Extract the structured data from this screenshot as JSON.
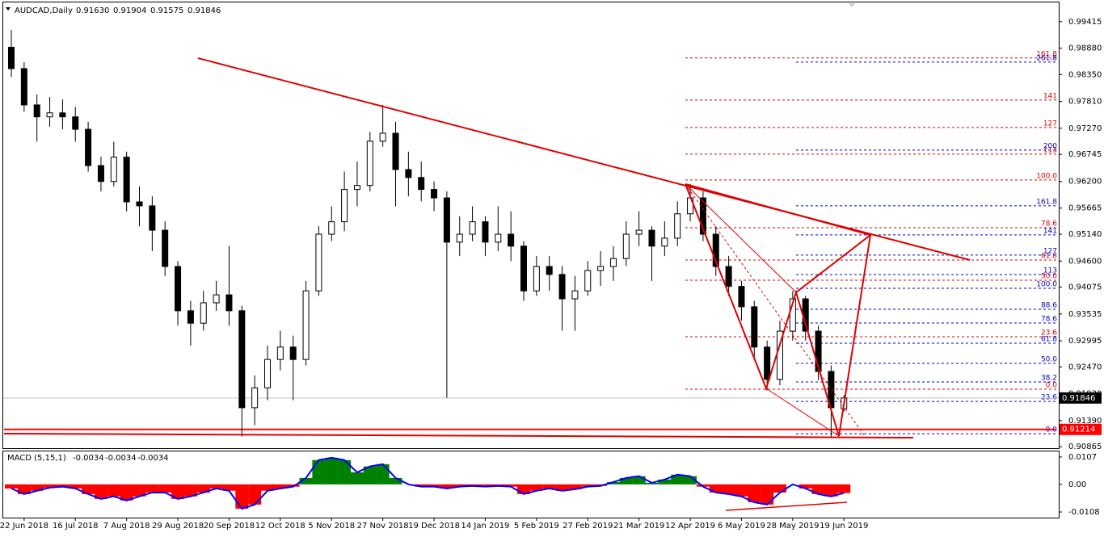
{
  "chart_data": [
    {
      "type": "candlestick",
      "title": "AUDCAD,Daily",
      "ohlc_header": {
        "values": [
          0.9163,
          0.91904,
          0.91575,
          0.91846
        ],
        "value_labels": [
          "0.91630",
          "0.91904",
          "0.91575",
          "0.91846"
        ]
      },
      "x": [
        null,
        "22 Jun 2018",
        null,
        null,
        null,
        "16 Jul 2018",
        null,
        null,
        null,
        "7 Aug 2018",
        null,
        null,
        null,
        "29 Aug 2018",
        null,
        null,
        null,
        "20 Sep 2018",
        null,
        null,
        null,
        "12 Oct 2018",
        null,
        null,
        null,
        "5 Nov 2018",
        null,
        null,
        null,
        "27 Nov 2018",
        null,
        null,
        null,
        "19 Dec 2018",
        null,
        null,
        null,
        "14 Jan 2019",
        null,
        null,
        null,
        "5 Feb 2019",
        null,
        null,
        null,
        "27 Feb 2019",
        null,
        null,
        null,
        "21 Mar 2019",
        null,
        null,
        null,
        "12 Apr 2019",
        null,
        null,
        null,
        "6 May 2019",
        null,
        null,
        null,
        "28 May 2019",
        null,
        null,
        null,
        "19 Jun 2019"
      ],
      "open": [
        0.989,
        0.9847,
        0.9774,
        0.975,
        0.9758,
        0.975,
        0.9725,
        0.9652,
        0.962,
        0.9669,
        0.9579,
        0.9571,
        0.9522,
        0.9449,
        0.936,
        0.9335,
        0.9376,
        0.9392,
        0.936,
        0.9165,
        0.9205,
        0.9262,
        0.9287,
        0.9262,
        0.94,
        0.9514,
        0.9539,
        0.9604,
        0.9612,
        0.9701,
        0.9717,
        0.9644,
        0.9628,
        0.9604,
        0.9587,
        0.9498,
        0.9514,
        0.9539,
        0.9498,
        0.9514,
        0.949,
        0.94,
        0.9449,
        0.9433,
        0.9384,
        0.94,
        0.9441,
        0.9449,
        0.9465,
        0.9514,
        0.9522,
        0.949,
        0.9506,
        0.9555,
        0.9587,
        0.9514,
        0.9449,
        0.9409,
        0.9368,
        0.9287,
        0.9222,
        0.9319,
        0.9384,
        0.9319,
        0.9238,
        0.9163
      ],
      "high": [
        0.9925,
        0.986,
        0.9795,
        0.979,
        0.9785,
        0.977,
        0.974,
        0.967,
        0.97,
        0.968,
        0.961,
        0.959,
        0.954,
        0.946,
        0.938,
        0.94,
        0.942,
        0.949,
        0.937,
        0.923,
        0.929,
        0.932,
        0.931,
        0.942,
        0.953,
        0.957,
        0.964,
        0.966,
        0.972,
        0.9774,
        0.974,
        0.968,
        0.966,
        0.962,
        0.96,
        0.955,
        0.957,
        0.955,
        0.957,
        0.956,
        0.95,
        0.947,
        0.947,
        0.945,
        0.943,
        0.946,
        0.948,
        0.949,
        0.954,
        0.956,
        0.953,
        0.954,
        0.958,
        0.9615,
        0.96,
        0.953,
        0.947,
        0.942,
        0.938,
        0.93,
        0.934,
        0.94,
        0.939,
        0.933,
        0.925,
        0.91904
      ],
      "low": [
        0.983,
        0.976,
        0.97,
        0.973,
        0.9725,
        0.97,
        0.964,
        0.96,
        0.961,
        0.956,
        0.953,
        0.948,
        0.943,
        0.933,
        0.929,
        0.932,
        0.936,
        0.933,
        0.9107,
        0.913,
        0.918,
        0.924,
        0.918,
        0.925,
        0.939,
        0.95,
        0.952,
        0.957,
        0.96,
        0.969,
        0.957,
        0.959,
        0.958,
        0.956,
        0.9185,
        0.947,
        0.95,
        0.947,
        0.948,
        0.946,
        0.938,
        0.939,
        0.94,
        0.932,
        0.932,
        0.939,
        0.941,
        0.942,
        0.945,
        0.949,
        0.942,
        0.947,
        0.949,
        0.954,
        0.95,
        0.943,
        0.939,
        0.934,
        0.926,
        0.92,
        0.921,
        0.93,
        0.93,
        0.922,
        0.9107,
        0.91575
      ],
      "close": [
        0.9847,
        0.9774,
        0.975,
        0.9758,
        0.975,
        0.9725,
        0.9652,
        0.962,
        0.9669,
        0.9579,
        0.9571,
        0.9522,
        0.9449,
        0.936,
        0.9335,
        0.9376,
        0.9392,
        0.936,
        0.9165,
        0.9205,
        0.9262,
        0.9287,
        0.9262,
        0.94,
        0.9514,
        0.9539,
        0.9604,
        0.9612,
        0.9701,
        0.9717,
        0.9644,
        0.9628,
        0.9604,
        0.9587,
        0.9498,
        0.9514,
        0.9539,
        0.9498,
        0.9514,
        0.949,
        0.94,
        0.9449,
        0.9433,
        0.9384,
        0.94,
        0.9441,
        0.9449,
        0.9465,
        0.9514,
        0.9522,
        0.949,
        0.9506,
        0.9555,
        0.9587,
        0.9514,
        0.9449,
        0.9409,
        0.9368,
        0.9287,
        0.9222,
        0.9319,
        0.9384,
        0.9319,
        0.9238,
        0.9165,
        0.91846
      ],
      "up_color": "#ffffff",
      "down_color": "#000000",
      "wick_color": "#000000",
      "ylim": [
        0.9082,
        0.9985
      ],
      "yticks": [
        {
          "value": 0.99415,
          "label": "0.99415"
        },
        {
          "value": 0.9888,
          "label": "0.98880"
        },
        {
          "value": 0.9835,
          "label": "0.98350"
        },
        {
          "value": 0.9781,
          "label": "0.97810"
        },
        {
          "value": 0.9727,
          "label": "0.97270"
        },
        {
          "value": 0.96745,
          "label": "0.96745"
        },
        {
          "value": 0.962,
          "label": "0.96200"
        },
        {
          "value": 0.95665,
          "label": "0.95665"
        },
        {
          "value": 0.9514,
          "label": "0.95140"
        },
        {
          "value": 0.946,
          "label": "0.94600"
        },
        {
          "value": 0.94075,
          "label": "0.94075"
        },
        {
          "value": 0.93535,
          "label": "0.93535"
        },
        {
          "value": 0.92995,
          "label": "0.92995"
        },
        {
          "value": 0.9247,
          "label": "0.92470"
        },
        {
          "value": 0.9193,
          "label": "0.91930"
        },
        {
          "value": 0.9139,
          "label": "0.91390"
        },
        {
          "value": 0.90865,
          "label": "0.90865"
        }
      ],
      "price": 0.91846,
      "price_color": "#000000",
      "alert": 0.91214,
      "alert_color": "#ff0000",
      "fib_red_color": "#e00000",
      "fib_red": [
        {
          "label": "161.8",
          "price": 0.98684
        },
        {
          "label": "141",
          "price": 0.97839
        },
        {
          "label": "127",
          "price": 0.97286
        },
        {
          "label": "113",
          "price": 0.9675
        },
        {
          "label": "100.0",
          "price": 0.9623
        },
        {
          "label": "78.6",
          "price": 0.95271
        },
        {
          "label": "61.8",
          "price": 0.94621
        },
        {
          "label": "50.0",
          "price": 0.94215
        },
        {
          "label": "23.6",
          "price": 0.93077
        },
        {
          "label": "0.0",
          "price": 0.92021
        }
      ],
      "fib_blue_color": "#0000cc",
      "fib_blue": [
        {
          "label": "261.8",
          "price": 0.98602
        },
        {
          "label": "200",
          "price": 0.96831
        },
        {
          "label": "161.8",
          "price": 0.9571
        },
        {
          "label": "141",
          "price": 0.95125
        },
        {
          "label": "127",
          "price": 0.94719
        },
        {
          "label": "113",
          "price": 0.94329
        },
        {
          "label": "100.0",
          "price": 0.94052
        },
        {
          "label": "88.6",
          "price": 0.9363
        },
        {
          "label": "78.6",
          "price": 0.93354
        },
        {
          "label": "61.8",
          "price": 0.92947
        },
        {
          "label": "50.0",
          "price": 0.92541
        },
        {
          "label": "38.2",
          "price": 0.92167
        },
        {
          "label": "23.6",
          "price": 0.91777
        },
        {
          "label": "0.0",
          "price": 0.91127
        }
      ]
    },
    {
      "type": "macd",
      "title": "MACD (5,15,1)",
      "readout": [
        -0.0034,
        -0.0034,
        -0.0034
      ],
      "values": [
        -0.0016,
        -0.0038,
        -0.0025,
        -0.0013,
        -0.0009,
        -0.0016,
        -0.0038,
        -0.0057,
        -0.0047,
        -0.0063,
        -0.0047,
        -0.0032,
        -0.0032,
        -0.0057,
        -0.0047,
        -0.0032,
        -0.0016,
        -0.0025,
        -0.0095,
        -0.0079,
        -0.0025,
        -0.0016,
        -0.0009,
        0.0025,
        0.0095,
        0.0104,
        0.0095,
        0.0047,
        0.007,
        0.0079,
        0.0025,
        0,
        -0.0009,
        -0.0009,
        -0.0016,
        -0.0009,
        -0.0006,
        -0.0009,
        -0.0006,
        -0.0009,
        -0.0038,
        -0.0025,
        -0.0016,
        -0.0025,
        -0.0019,
        -0.0009,
        -0.0006,
        0.0009,
        0.0025,
        0.0032,
        0.0006,
        0.0019,
        0.0038,
        0.0032,
        -0.0009,
        -0.0032,
        -0.0038,
        -0.0047,
        -0.007,
        -0.0079,
        -0.0032,
        0,
        -0.0016,
        -0.0038,
        -0.0047,
        -0.0034
      ],
      "positive_color": "#008000",
      "negative_color": "#ff0000",
      "line_color": "#0000ff",
      "ylim": [
        -0.013,
        0.0132
      ],
      "yticks": [
        0.0107,
        {
          "value": 0,
          "label": "0.00"
        },
        -0.0108
      ]
    }
  ]
}
